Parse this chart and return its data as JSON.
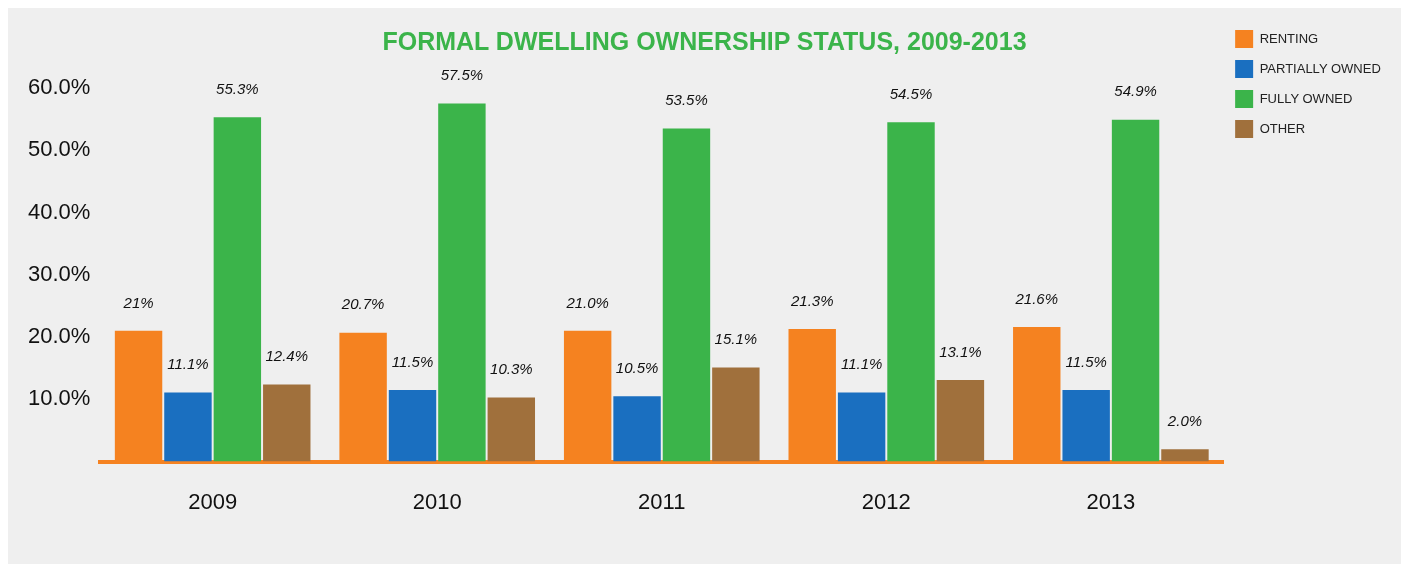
{
  "chart_data": {
    "type": "bar",
    "title": "FORMAL DWELLING OWNERSHIP STATUS, 2009-2013",
    "categories": [
      "2009",
      "2010",
      "2011",
      "2012",
      "2013"
    ],
    "series": [
      {
        "name": "RENTING",
        "color": "#f58220",
        "values": [
          21,
          20.7,
          21.0,
          21.3,
          21.6
        ],
        "value_labels": [
          "21%",
          "20.7%",
          "21.0%",
          "21.3%",
          "21.6%"
        ]
      },
      {
        "name": "PARTIALLY OWNED",
        "color": "#1a6fc0",
        "values": [
          11.1,
          11.5,
          10.5,
          11.1,
          11.5
        ],
        "value_labels": [
          "11.1%",
          "11.5%",
          "10.5%",
          "11.1%",
          "11.5%"
        ]
      },
      {
        "name": "FULLY OWNED",
        "color": "#3bb44a",
        "values": [
          55.3,
          57.5,
          53.5,
          54.5,
          54.9
        ],
        "value_labels": [
          "55.3%",
          "57.5%",
          "53.5%",
          "54.5%",
          "54.9%"
        ]
      },
      {
        "name": "OTHER",
        "color": "#a0703c",
        "values": [
          12.4,
          10.3,
          15.1,
          13.1,
          2.0
        ],
        "value_labels": [
          "12.4%",
          "10.3%",
          "15.1%",
          "13.1%",
          "2.0%"
        ]
      }
    ],
    "ylim": [
      0,
      60
    ],
    "yticks": [
      {
        "value": 10,
        "label": "10.0%"
      },
      {
        "value": 20,
        "label": "20.0%"
      },
      {
        "value": 30,
        "label": "30.0%"
      },
      {
        "value": 40,
        "label": "40.0%"
      },
      {
        "value": 50,
        "label": "50.0%"
      },
      {
        "value": 60,
        "label": "60.0%"
      }
    ],
    "grid": false,
    "legend": "top right"
  }
}
